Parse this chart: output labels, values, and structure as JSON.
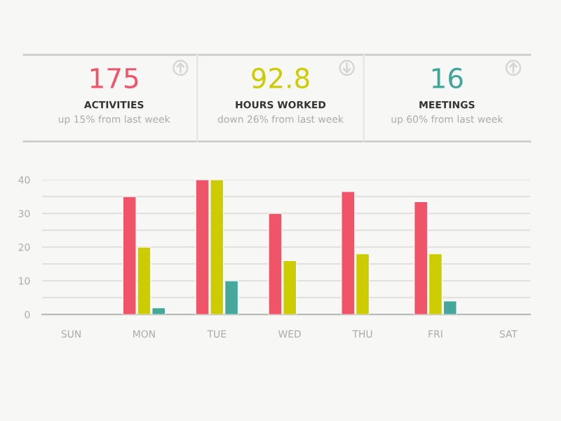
{
  "chart_data": [
    {
      "type": "other",
      "colors": [
        "#ef5468",
        "#cccc00",
        "#3fa596"
      ],
      "annotations": [
        "175",
        "ACTIVITIES",
        "up 15% from last week",
        "92.8",
        "HOURS WORKED",
        "down 26% from last week",
        "16",
        "MEETINGS",
        "up 60% from last week"
      ]
    },
    {
      "type": "bar",
      "categories": [
        "SUN",
        "MON",
        "TUE",
        "WED",
        "THU",
        "FRI",
        "SAT"
      ],
      "series": [
        {
          "color": "#ef5468",
          "values": [
            null,
            35,
            40,
            30,
            36.5,
            33.5,
            null
          ]
        },
        {
          "color": "#cccc00",
          "values": [
            null,
            20,
            40,
            16,
            18,
            18,
            null
          ]
        },
        {
          "color": "#45a89a",
          "values": [
            null,
            2,
            10,
            null,
            null,
            4,
            null
          ]
        }
      ],
      "ylim": [
        0,
        40
      ],
      "yticks": [
        0,
        {
          "value": 5,
          "label": null
        },
        10,
        {
          "value": 15,
          "label": null
        },
        20,
        {
          "value": 25,
          "label": null
        },
        30,
        {
          "value": 35,
          "label": null
        },
        40
      ],
      "grid": "y"
    }
  ]
}
